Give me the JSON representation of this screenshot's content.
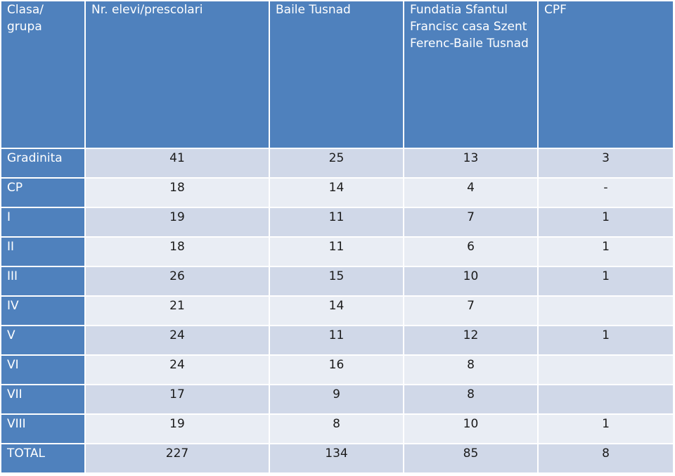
{
  "table": {
    "headers": [
      "Clasa/ grupa",
      "Nr. elevi/prescolari",
      "Baile Tusnad",
      "Fundatia Sfantul Francisc casa Szent Ferenc-Baile Tusnad",
      "CPF"
    ],
    "rows": [
      {
        "label": "Gradinita",
        "values": [
          "41",
          "25",
          "13",
          "3"
        ]
      },
      {
        "label": "CP",
        "values": [
          "18",
          "14",
          "4",
          "-"
        ]
      },
      {
        "label": "I",
        "values": [
          "19",
          "11",
          "7",
          "1"
        ]
      },
      {
        "label": "II",
        "values": [
          "18",
          "11",
          "6",
          "1"
        ]
      },
      {
        "label": "III",
        "values": [
          "26",
          "15",
          "10",
          "1"
        ]
      },
      {
        "label": "IV",
        "values": [
          "21",
          "14",
          "7",
          ""
        ]
      },
      {
        "label": "V",
        "values": [
          "24",
          "11",
          "12",
          "1"
        ]
      },
      {
        "label": "VI",
        "values": [
          "24",
          "16",
          "8",
          ""
        ]
      },
      {
        "label": "VII",
        "values": [
          "17",
          "9",
          "8",
          ""
        ]
      },
      {
        "label": "VIII",
        "values": [
          "19",
          "8",
          "10",
          "1"
        ]
      },
      {
        "label": "TOTAL",
        "values": [
          "227",
          "134",
          "85",
          "8"
        ]
      }
    ]
  },
  "colors": {
    "header_bg": "#4f81bd",
    "row_band_dark": "#d0d8e8",
    "row_band_light": "#e9edf4",
    "header_text": "#ffffff"
  }
}
